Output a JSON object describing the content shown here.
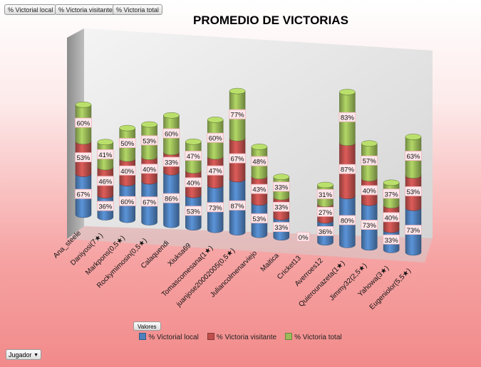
{
  "field_buttons": [
    "% Victorial local",
    "% Victoria visitante",
    "% Victoria total"
  ],
  "valores_button": "Valores",
  "jugador_dropdown": "Jugador",
  "chart_data": {
    "type": "bar",
    "stacked": true,
    "three_d": true,
    "title": "PROMEDIO DE VICTORIAS",
    "categories": [
      "Ana_steele",
      "Daniyosi(7★)",
      "Markpons(0,5★)",
      "Rockymimosin(0,5★)",
      "Calaquendi",
      "Xiuksa69",
      "Tomascomesana(1★)",
      "juanjose20002005(0,5★)",
      "Juliancolmenarviejo",
      "Maitica",
      "Cricket13",
      "Averroes12",
      "Quierounazeta(1★)",
      "Jimmy32(2,5★)",
      "Yahowa(3★)",
      "Eugeniolor(5,5★)"
    ],
    "series": [
      {
        "name": "% Victorial local",
        "color": "#4f81bd",
        "values": [
          67,
          36,
          60,
          67,
          86,
          53,
          73,
          87,
          53,
          33,
          0,
          36,
          80,
          73,
          33,
          73
        ],
        "labels": [
          "67%",
          "36%",
          "60%",
          "67%",
          "86%",
          "53%",
          "73%",
          "87%",
          "53%",
          "33%",
          "0%",
          "36%",
          "80%",
          "73%",
          "33%",
          "73%"
        ]
      },
      {
        "name": "% Victoria visitante",
        "color": "#c0504d",
        "values": [
          53,
          46,
          40,
          40,
          33,
          40,
          47,
          67,
          43,
          33,
          0,
          27,
          87,
          40,
          40,
          53
        ],
        "labels": [
          "53%",
          "46%",
          "40%",
          "40%",
          "33%",
          "40%",
          "47%",
          "67%",
          "43%",
          "33%",
          "",
          "27%",
          "87%",
          "40%",
          "40%",
          "53%"
        ]
      },
      {
        "name": "% Victoria total",
        "color": "#9bbb59",
        "values": [
          60,
          41,
          50,
          53,
          60,
          47,
          60,
          77,
          48,
          33,
          0,
          31,
          83,
          57,
          37,
          63
        ],
        "labels": [
          "60%",
          "41%",
          "50%",
          "53%",
          "60%",
          "47%",
          "60%",
          "77%",
          "48%",
          "33%",
          "",
          "31%",
          "83%",
          "57%",
          "37%",
          "63%"
        ]
      }
    ],
    "legend_position": "bottom",
    "grid": false
  }
}
